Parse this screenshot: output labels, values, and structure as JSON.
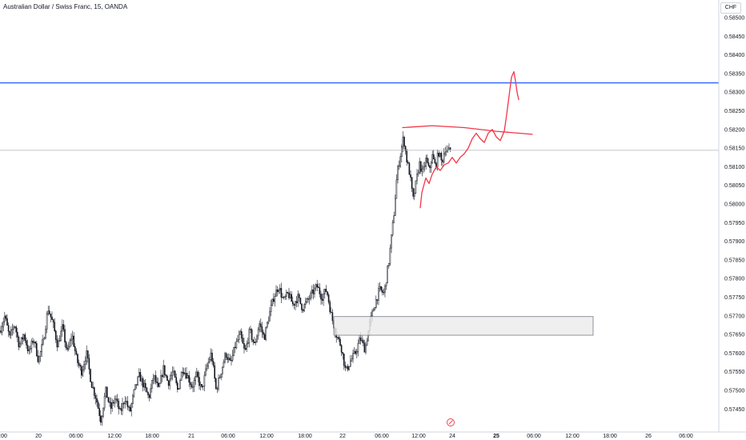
{
  "header": {
    "symbol_title": "Australian Dollar / Swiss Franc, 15, OANDA",
    "currency": "CHF"
  },
  "colors": {
    "candle": "#131722",
    "horizontal_line_blue": "#2962ff",
    "price_line_gray": "#b2b5be",
    "drawing_red": "#f23645",
    "zone_fill": "#ebebeb",
    "zone_border": "#787b86"
  },
  "chart_data": {
    "type": "candlestick",
    "y_axis": {
      "range": [
        0.5742,
        0.5853
      ],
      "tick_labels": [
        "0.58500",
        "0.58450",
        "0.58400",
        "0.58350",
        "0.58300",
        "0.58250",
        "0.58200",
        "0.58150",
        "0.58100",
        "0.58050",
        "0.58000",
        "0.57950",
        "0.57900",
        "0.57850",
        "0.57800",
        "0.57750",
        "0.57700",
        "0.57650",
        "0.57600",
        "0.57550",
        "0.57500",
        "0.57450"
      ]
    },
    "x_axis": {
      "tick_labels": [
        ":00",
        "20",
        "06:00",
        "12:00",
        "18:00",
        "21",
        "06:00",
        "12:00",
        "18:00",
        "22",
        "06:00",
        "12:00",
        "24",
        "25",
        "06:00",
        "12:00",
        "18:00",
        "26",
        "06:00"
      ],
      "bold_labels": [
        "25"
      ]
    },
    "close_path": [
      [
        0,
        0.5766
      ],
      [
        6,
        0.577
      ],
      [
        12,
        0.5764
      ],
      [
        18,
        0.5768
      ],
      [
        24,
        0.5762
      ],
      [
        30,
        0.5765
      ],
      [
        36,
        0.576
      ],
      [
        42,
        0.5764
      ],
      [
        48,
        0.5758
      ],
      [
        54,
        0.5763
      ],
      [
        60,
        0.5772
      ],
      [
        66,
        0.5768
      ],
      [
        72,
        0.5762
      ],
      [
        78,
        0.5767
      ],
      [
        84,
        0.576
      ],
      [
        90,
        0.5765
      ],
      [
        96,
        0.5758
      ],
      [
        102,
        0.5755
      ],
      [
        108,
        0.576
      ],
      [
        114,
        0.5752
      ],
      [
        120,
        0.5748
      ],
      [
        126,
        0.5742
      ],
      [
        132,
        0.575
      ],
      [
        138,
        0.5745
      ],
      [
        144,
        0.5748
      ],
      [
        150,
        0.5744
      ],
      [
        156,
        0.5748
      ],
      [
        162,
        0.5744
      ],
      [
        168,
        0.575
      ],
      [
        174,
        0.5754
      ],
      [
        180,
        0.5751
      ],
      [
        186,
        0.5748
      ],
      [
        192,
        0.5754
      ],
      [
        198,
        0.575
      ],
      [
        204,
        0.5756
      ],
      [
        210,
        0.5752
      ],
      [
        216,
        0.5755
      ],
      [
        222,
        0.575
      ],
      [
        228,
        0.5756
      ],
      [
        234,
        0.5754
      ],
      [
        240,
        0.5751
      ],
      [
        246,
        0.5754
      ],
      [
        252,
        0.575
      ],
      [
        258,
        0.5756
      ],
      [
        264,
        0.576
      ],
      [
        270,
        0.575
      ],
      [
        276,
        0.5755
      ],
      [
        282,
        0.576
      ],
      [
        288,
        0.5757
      ],
      [
        294,
        0.5762
      ],
      [
        300,
        0.5765
      ],
      [
        306,
        0.576
      ],
      [
        312,
        0.5766
      ],
      [
        318,
        0.5762
      ],
      [
        324,
        0.5768
      ],
      [
        330,
        0.5764
      ],
      [
        336,
        0.577
      ],
      [
        342,
        0.5775
      ],
      [
        348,
        0.5778
      ],
      [
        354,
        0.5774
      ],
      [
        360,
        0.5776
      ],
      [
        366,
        0.5773
      ],
      [
        372,
        0.5775
      ],
      [
        378,
        0.5772
      ],
      [
        384,
        0.5774
      ],
      [
        390,
        0.5776
      ],
      [
        396,
        0.5778
      ],
      [
        402,
        0.5775
      ],
      [
        408,
        0.5777
      ],
      [
        414,
        0.577
      ],
      [
        420,
        0.5765
      ],
      [
        426,
        0.5762
      ],
      [
        432,
        0.5755
      ],
      [
        438,
        0.5758
      ],
      [
        444,
        0.576
      ],
      [
        450,
        0.5764
      ],
      [
        456,
        0.5761
      ],
      [
        462,
        0.5768
      ],
      [
        468,
        0.5773
      ],
      [
        474,
        0.5777
      ],
      [
        480,
        0.5776
      ],
      [
        486,
        0.5785
      ],
      [
        492,
        0.5797
      ],
      [
        496,
        0.5808
      ],
      [
        500,
        0.5813
      ],
      [
        504,
        0.5818
      ],
      [
        508,
        0.5812
      ],
      [
        512,
        0.5808
      ],
      [
        516,
        0.5801
      ],
      [
        520,
        0.5806
      ],
      [
        524,
        0.5811
      ],
      [
        528,
        0.5808
      ],
      [
        532,
        0.5812
      ],
      [
        536,
        0.5809
      ],
      [
        540,
        0.5813
      ],
      [
        544,
        0.581
      ],
      [
        548,
        0.5814
      ],
      [
        552,
        0.5811
      ],
      [
        556,
        0.5815
      ],
      [
        560,
        0.5814
      ],
      [
        564,
        0.5815
      ]
    ],
    "support_zone": {
      "x_range": [
        417,
        741
      ],
      "y_range": [
        0.57648,
        0.57698
      ]
    },
    "horizontal_lines": [
      {
        "price": 0.58325,
        "style": "blue"
      },
      {
        "price": 0.58144,
        "style": "gray"
      }
    ],
    "annotations": {
      "resistance_curve": [
        [
          503,
          0.58205
        ],
        [
          540,
          0.5821
        ],
        [
          580,
          0.58205
        ],
        [
          620,
          0.58195
        ],
        [
          665,
          0.58187
        ]
      ],
      "projection_path": [
        [
          525,
          0.5799
        ],
        [
          527,
          0.5803
        ],
        [
          532,
          0.5807
        ],
        [
          536,
          0.58055
        ],
        [
          540,
          0.5808
        ],
        [
          545,
          0.581
        ],
        [
          550,
          0.5809
        ],
        [
          555,
          0.58105
        ],
        [
          560,
          0.5811
        ],
        [
          565,
          0.58125
        ],
        [
          570,
          0.5811
        ],
        [
          575,
          0.58125
        ],
        [
          580,
          0.58135
        ],
        [
          585,
          0.5815
        ],
        [
          590,
          0.58175
        ],
        [
          595,
          0.5819
        ],
        [
          600,
          0.58175
        ],
        [
          605,
          0.58165
        ],
        [
          610,
          0.5819
        ],
        [
          615,
          0.582
        ],
        [
          620,
          0.5818
        ],
        [
          625,
          0.5817
        ],
        [
          630,
          0.58195
        ],
        [
          633,
          0.5824
        ],
        [
          636,
          0.5829
        ],
        [
          639,
          0.5834
        ],
        [
          642,
          0.58355
        ],
        [
          644,
          0.5833
        ],
        [
          646,
          0.583
        ],
        [
          648,
          0.5828
        ]
      ]
    },
    "grid": false,
    "legend": "none"
  }
}
